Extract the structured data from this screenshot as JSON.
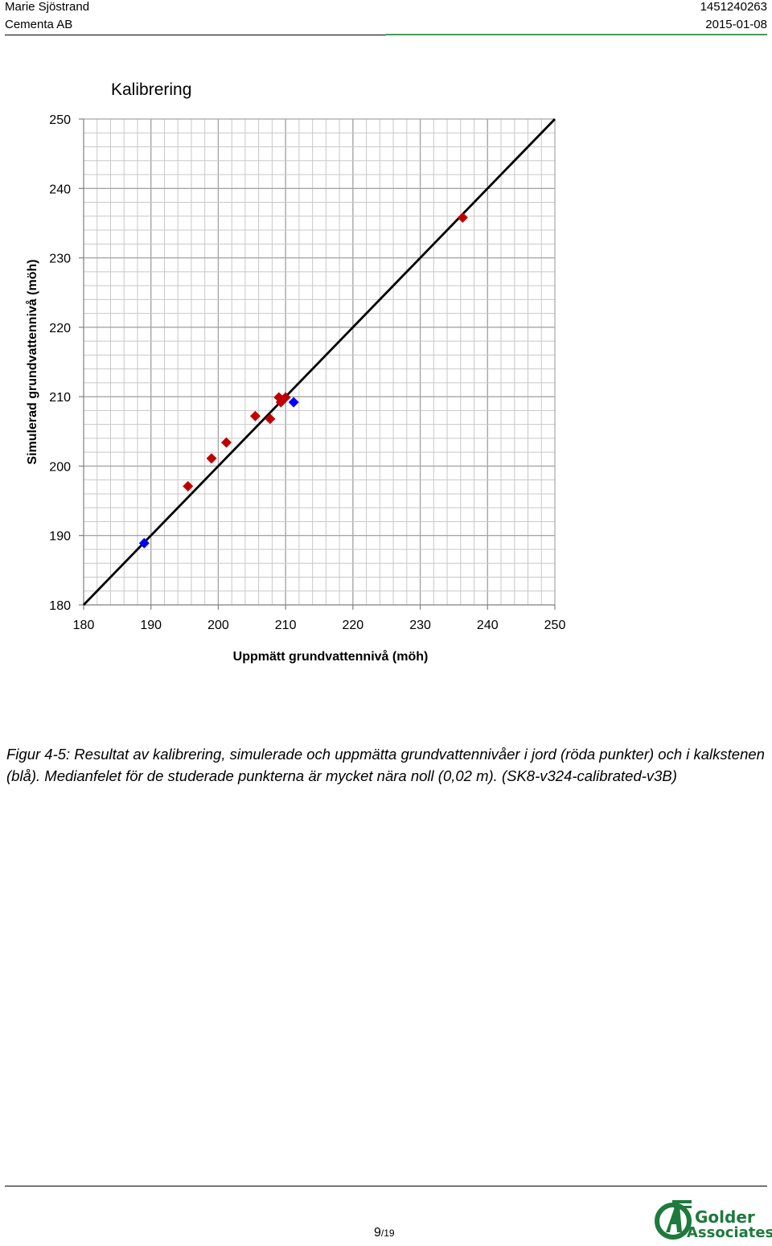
{
  "header": {
    "author": "Marie Sjöstrand",
    "company": "Cementa AB",
    "doc_number": "1451240263",
    "date": "2015-01-08"
  },
  "chart_data": {
    "type": "scatter",
    "title": "Kalibrering",
    "xlabel": "Uppmätt grundvattennivå (möh)",
    "ylabel": "Simulerad grundvattennivå (möh)",
    "xlim": [
      180,
      250
    ],
    "ylim": [
      180,
      250
    ],
    "x_ticks": [
      180,
      190,
      200,
      210,
      220,
      230,
      240,
      250
    ],
    "y_ticks": [
      180,
      190,
      200,
      210,
      220,
      230,
      240,
      250
    ],
    "grid": true,
    "legend": "none",
    "reference_line": {
      "from": [
        180,
        180
      ],
      "to": [
        250,
        250
      ],
      "color": "#000000"
    },
    "series": [
      {
        "color": "#c00000",
        "marker": "diamond",
        "points": [
          [
            195.5,
            197.1
          ],
          [
            199.0,
            201.1
          ],
          [
            201.2,
            203.4
          ],
          [
            205.5,
            207.2
          ],
          [
            207.7,
            206.8
          ],
          [
            209.0,
            209.9
          ],
          [
            209.3,
            209.2
          ],
          [
            210.0,
            209.9
          ],
          [
            236.3,
            235.8
          ]
        ]
      },
      {
        "color": "#0000ff",
        "marker": "diamond",
        "points": [
          [
            189.0,
            188.9
          ],
          [
            211.2,
            209.2
          ]
        ]
      }
    ]
  },
  "caption": "Figur 4-5: Resultat av kalibrering, simulerade och uppmätta grundvattennivåer i jord (röda punkter) och i kalkstenen (blå). Medianfelet för de studerade punkterna är mycket nära noll (0,02 m). (SK8-v324-calibrated-v3B)",
  "footer": {
    "page": "9",
    "total": "/19",
    "logo_line1": "Golder",
    "logo_line2": "Associates"
  }
}
